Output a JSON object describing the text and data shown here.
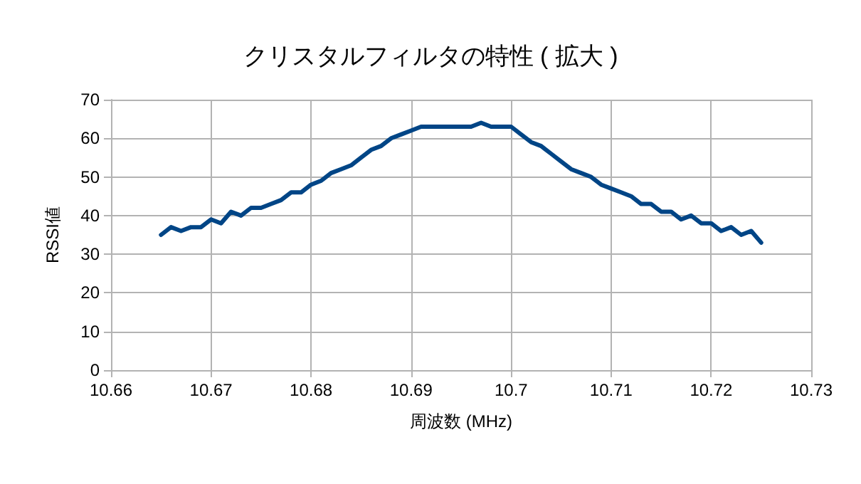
{
  "chart_data": {
    "type": "line",
    "title": "クリスタルフィルタの特性 ( 拡大 )",
    "xlabel": "周波数 (MHz)",
    "ylabel": "RSSI値",
    "x": [
      10.665,
      10.666,
      10.667,
      10.668,
      10.669,
      10.67,
      10.671,
      10.672,
      10.673,
      10.674,
      10.675,
      10.676,
      10.677,
      10.678,
      10.679,
      10.68,
      10.681,
      10.682,
      10.683,
      10.684,
      10.685,
      10.686,
      10.687,
      10.688,
      10.689,
      10.69,
      10.691,
      10.692,
      10.693,
      10.694,
      10.695,
      10.696,
      10.697,
      10.698,
      10.699,
      10.7,
      10.701,
      10.702,
      10.703,
      10.704,
      10.705,
      10.706,
      10.707,
      10.708,
      10.709,
      10.71,
      10.711,
      10.712,
      10.713,
      10.714,
      10.715,
      10.716,
      10.717,
      10.718,
      10.719,
      10.72,
      10.721,
      10.722,
      10.723,
      10.724,
      10.725
    ],
    "series": [
      {
        "color": "#004586",
        "values": [
          35,
          37,
          36,
          37,
          37,
          39,
          38,
          41,
          40,
          42,
          42,
          43,
          44,
          46,
          46,
          48,
          49,
          51,
          52,
          53,
          55,
          57,
          58,
          60,
          61,
          62,
          63,
          63,
          63,
          63,
          63,
          63,
          64,
          63,
          63,
          63,
          61,
          59,
          58,
          56,
          54,
          52,
          51,
          50,
          48,
          47,
          46,
          45,
          43,
          43,
          41,
          41,
          39,
          40,
          38,
          38,
          36,
          37,
          35,
          36,
          33
        ]
      }
    ],
    "xlim": [
      10.66,
      10.73
    ],
    "xticks": [
      10.66,
      10.67,
      10.68,
      10.69,
      {
        "value": 10.7,
        "label": "10.7"
      },
      10.71,
      10.72,
      10.73
    ],
    "ylim": [
      0,
      70
    ],
    "yticks": [
      0,
      10,
      20,
      30,
      40,
      50,
      60,
      70
    ],
    "grid": true,
    "marker": "none",
    "line_style": "solid"
  }
}
